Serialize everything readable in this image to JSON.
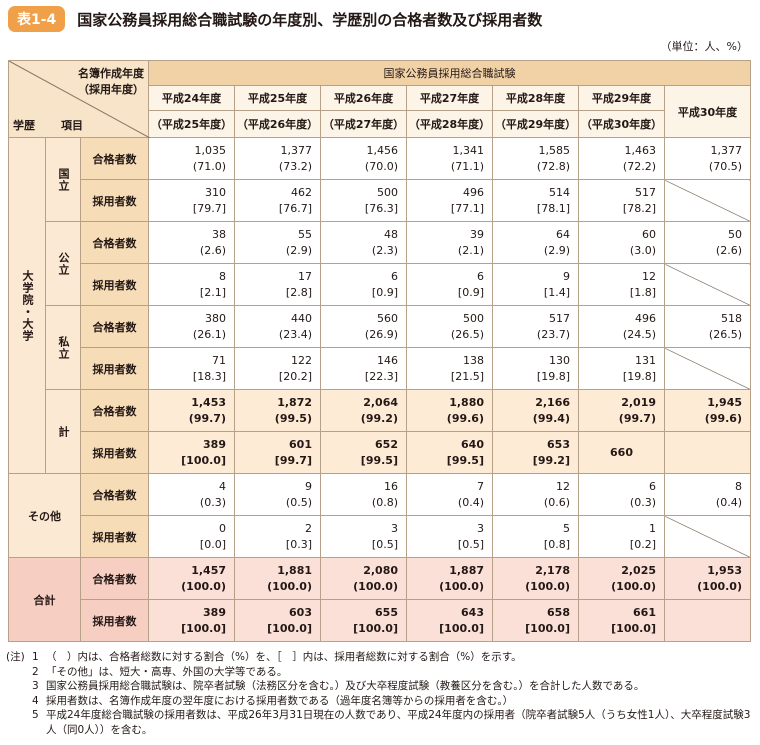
{
  "header": {
    "badge": "表1-4",
    "title": "国家公務員採用総合職試験の年度別、学歴別の合格者数及び採用者数",
    "unit": "（単位：人、%）"
  },
  "table": {
    "corner": {
      "top": "名簿作成年度",
      "top2": "（採用年度）",
      "left": "学歴",
      "right": "項目"
    },
    "group_header": "国家公務員採用総合職試験",
    "years": [
      "平成24年度",
      "平成25年度",
      "平成26年度",
      "平成27年度",
      "平成28年度",
      "平成29年度",
      "平成30年度"
    ],
    "sub_years": [
      "（平成25年度）",
      "（平成26年度）",
      "（平成27年度）",
      "（平成28年度）",
      "（平成29年度）",
      "（平成30年度）"
    ],
    "sections": [
      {
        "label": "大学院・大学",
        "subgroups": [
          {
            "label": "国立",
            "rows": [
              {
                "item": "合格者数",
                "cells": [
                  [
                    "1,035",
                    "(71.0)"
                  ],
                  [
                    "1,377",
                    "(73.2)"
                  ],
                  [
                    "1,456",
                    "(70.0)"
                  ],
                  [
                    "1,341",
                    "(71.1)"
                  ],
                  [
                    "1,585",
                    "(72.8)"
                  ],
                  [
                    "1,463",
                    "(72.2)"
                  ],
                  [
                    "1,377",
                    "(70.5)"
                  ]
                ]
              },
              {
                "item": "採用者数",
                "cells": [
                  [
                    "310",
                    "[79.7]"
                  ],
                  [
                    "462",
                    "[76.7]"
                  ],
                  [
                    "500",
                    "[76.3]"
                  ],
                  [
                    "496",
                    "[77.1]"
                  ],
                  [
                    "514",
                    "[78.1]"
                  ],
                  [
                    "517",
                    "[78.2]"
                  ],
                  null
                ]
              }
            ]
          },
          {
            "label": "公立",
            "rows": [
              {
                "item": "合格者数",
                "cells": [
                  [
                    "38",
                    "(2.6)"
                  ],
                  [
                    "55",
                    "(2.9)"
                  ],
                  [
                    "48",
                    "(2.3)"
                  ],
                  [
                    "39",
                    "(2.1)"
                  ],
                  [
                    "64",
                    "(2.9)"
                  ],
                  [
                    "60",
                    "(3.0)"
                  ],
                  [
                    "50",
                    "(2.6)"
                  ]
                ]
              },
              {
                "item": "採用者数",
                "cells": [
                  [
                    "8",
                    "[2.1]"
                  ],
                  [
                    "17",
                    "[2.8]"
                  ],
                  [
                    "6",
                    "[0.9]"
                  ],
                  [
                    "6",
                    "[0.9]"
                  ],
                  [
                    "9",
                    "[1.4]"
                  ],
                  [
                    "12",
                    "[1.8]"
                  ],
                  null
                ]
              }
            ]
          },
          {
            "label": "私立",
            "rows": [
              {
                "item": "合格者数",
                "cells": [
                  [
                    "380",
                    "(26.1)"
                  ],
                  [
                    "440",
                    "(23.4)"
                  ],
                  [
                    "560",
                    "(26.9)"
                  ],
                  [
                    "500",
                    "(26.5)"
                  ],
                  [
                    "517",
                    "(23.7)"
                  ],
                  [
                    "496",
                    "(24.5)"
                  ],
                  [
                    "518",
                    "(26.5)"
                  ]
                ]
              },
              {
                "item": "採用者数",
                "cells": [
                  [
                    "71",
                    "[18.3]"
                  ],
                  [
                    "122",
                    "[20.2]"
                  ],
                  [
                    "146",
                    "[22.3]"
                  ],
                  [
                    "138",
                    "[21.5]"
                  ],
                  [
                    "130",
                    "[19.8]"
                  ],
                  [
                    "131",
                    "[19.8]"
                  ],
                  null
                ]
              }
            ]
          },
          {
            "label": "計",
            "subtotal": true,
            "rows": [
              {
                "item": "合格者数",
                "cells": [
                  [
                    "1,453",
                    "(99.7)"
                  ],
                  [
                    "1,872",
                    "(99.5)"
                  ],
                  [
                    "2,064",
                    "(99.2)"
                  ],
                  [
                    "1,880",
                    "(99.6)"
                  ],
                  [
                    "2,166",
                    "(99.4)"
                  ],
                  [
                    "2,019",
                    "(99.7)"
                  ],
                  [
                    "1,945",
                    "(99.6)"
                  ]
                ]
              },
              {
                "item": "採用者数",
                "cells": [
                  [
                    "389",
                    "[100.0]"
                  ],
                  [
                    "601",
                    "[99.7]"
                  ],
                  [
                    "652",
                    "[99.5]"
                  ],
                  [
                    "640",
                    "[99.5]"
                  ],
                  [
                    "653",
                    "[99.2]"
                  ],
                  [
                    "660"
                  ],
                  null
                ]
              }
            ]
          }
        ]
      },
      {
        "label": "その他",
        "rows": [
          {
            "item": "合格者数",
            "cells": [
              [
                "4",
                "(0.3)"
              ],
              [
                "9",
                "(0.5)"
              ],
              [
                "16",
                "(0.8)"
              ],
              [
                "7",
                "(0.4)"
              ],
              [
                "12",
                "(0.6)"
              ],
              [
                "6",
                "(0.3)"
              ],
              [
                "8",
                "(0.4)"
              ]
            ]
          },
          {
            "item": "採用者数",
            "cells": [
              [
                "0",
                "[0.0]"
              ],
              [
                "2",
                "[0.3]"
              ],
              [
                "3",
                "[0.5]"
              ],
              [
                "3",
                "[0.5]"
              ],
              [
                "5",
                "[0.8]"
              ],
              [
                "1",
                "[0.2]"
              ],
              null
            ]
          }
        ]
      },
      {
        "label": "合計",
        "total": true,
        "rows": [
          {
            "item": "合格者数",
            "cells": [
              [
                "1,457",
                "(100.0)"
              ],
              [
                "1,881",
                "(100.0)"
              ],
              [
                "2,080",
                "(100.0)"
              ],
              [
                "1,887",
                "(100.0)"
              ],
              [
                "2,178",
                "(100.0)"
              ],
              [
                "2,025",
                "(100.0)"
              ],
              [
                "1,953",
                "(100.0)"
              ]
            ]
          },
          {
            "item": "採用者数",
            "cells": [
              [
                "389",
                "[100.0]"
              ],
              [
                "603",
                "[100.0]"
              ],
              [
                "655",
                "[100.0]"
              ],
              [
                "643",
                "[100.0]"
              ],
              [
                "658",
                "[100.0]"
              ],
              [
                "661",
                "[100.0]"
              ],
              null
            ]
          }
        ]
      }
    ]
  },
  "notes": {
    "label": "(注)",
    "items": [
      {
        "no": "1",
        "text": "（　）内は、合格者総数に対する割合（%）を、［　］内は、採用者総数に対する割合（%）を示す。"
      },
      {
        "no": "2",
        "text": "「その他」は、短大・高専、外国の大学等である。"
      },
      {
        "no": "3",
        "text": "国家公務員採用総合職試験は、院卒者試験（法務区分を含む。）及び大卒程度試験（教養区分を含む。）を合計した人数である。"
      },
      {
        "no": "4",
        "text": "採用者数は、名簿作成年度の翌年度における採用者数である（過年度名簿等からの採用者を含む。）"
      },
      {
        "no": "5",
        "text": "平成24年度総合職試験の採用者数は、平成26年3月31日現在の人数であり、平成24年度内の採用者（院卒者試験5人（うち女性1人）、大卒程度試験3人（同0人））を含む。"
      }
    ]
  }
}
